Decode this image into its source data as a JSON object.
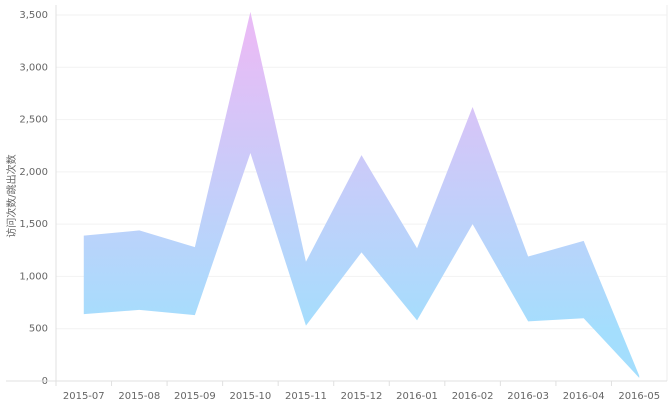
{
  "chart_data": {
    "type": "range-area",
    "y_label": "访问次数/跳出次数",
    "categories": [
      "2015-07",
      "2015-08",
      "2015-09",
      "2015-10",
      "2015-11",
      "2015-12",
      "2016-01",
      "2016-02",
      "2016-03",
      "2016-04",
      "2016-05"
    ],
    "series": [
      {
        "values": [
          1390,
          1440,
          1280,
          3530,
          1140,
          2160,
          1270,
          2620,
          1190,
          1340,
          50
        ]
      },
      {
        "values": [
          640,
          680,
          630,
          2180,
          530,
          1230,
          580,
          1500,
          570,
          600,
          30
        ]
      }
    ],
    "gradient": [
      "#e8bcf6",
      "#a4defd"
    ],
    "ylim": [
      0,
      3500
    ],
    "yticks": [
      0,
      500,
      {
        "value": 1000,
        "label": "1,000"
      },
      {
        "value": 1500,
        "label": "1,500"
      },
      {
        "value": 2000,
        "label": "2,000"
      },
      {
        "value": 2500,
        "label": "2,500"
      },
      {
        "value": 3000,
        "label": "3,000"
      },
      {
        "value": 3500,
        "label": "3,500"
      }
    ],
    "grid": true
  }
}
